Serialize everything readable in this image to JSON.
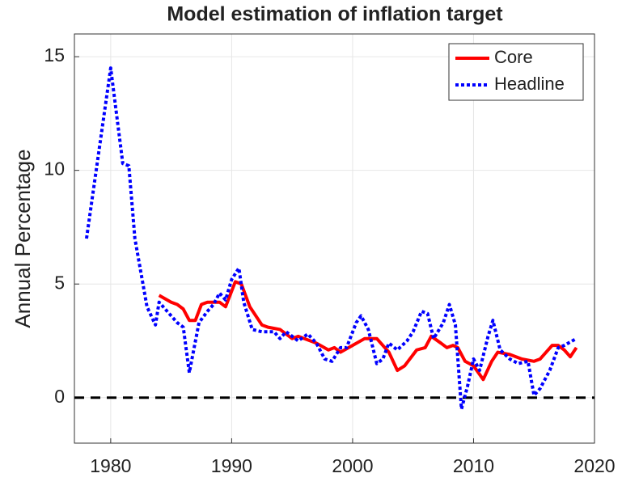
{
  "chart_data": {
    "type": "line",
    "title": "Model estimation of inflation target",
    "y_label": "Annual Percentage",
    "xlim": [
      1977,
      2020
    ],
    "xticks": [
      1980,
      1990,
      2000,
      2010,
      2020
    ],
    "ylim": [
      -2,
      16
    ],
    "yticks": [
      0,
      5,
      10,
      15
    ],
    "grid": true,
    "legend": "northeast",
    "reference_line": 0,
    "series": [
      {
        "name": "Core",
        "color": "#ff0000",
        "style": "solid",
        "x": [
          1984,
          1985,
          1985.5,
          1986,
          1986.5,
          1987,
          1987.5,
          1988,
          1989,
          1989.5,
          1990.3,
          1990.8,
          1991.5,
          1992.5,
          1993,
          1994,
          1995,
          1995.5,
          1997,
          1998,
          1998.5,
          1999,
          2000,
          2001,
          2002,
          2003,
          2003.7,
          2004.3,
          2005.3,
          2006,
          2006.5,
          2007.3,
          2007.8,
          2008.3,
          2008.7,
          2009.3,
          2010,
          2010.8,
          2011.5,
          2012,
          2013,
          2014,
          2015,
          2015.5,
          2016,
          2016.5,
          2017,
          2017.5,
          2018,
          2018.5
        ],
        "values": [
          4.5,
          4.2,
          4.1,
          3.9,
          3.4,
          3.4,
          4.1,
          4.2,
          4.2,
          4.0,
          5.1,
          5.0,
          4.0,
          3.2,
          3.1,
          3.0,
          2.6,
          2.7,
          2.4,
          2.1,
          2.2,
          2.0,
          2.3,
          2.6,
          2.6,
          2.0,
          1.2,
          1.4,
          2.1,
          2.2,
          2.7,
          2.4,
          2.2,
          2.3,
          2.2,
          1.6,
          1.4,
          0.8,
          1.6,
          2.0,
          1.9,
          1.7,
          1.6,
          1.7,
          2.0,
          2.3,
          2.3,
          2.1,
          1.8,
          2.2
        ]
      },
      {
        "name": "Headline",
        "color": "#0000ff",
        "style": "dotted",
        "x": [
          1978,
          1980,
          1981,
          1981.5,
          1982,
          1983,
          1983.7,
          1984,
          1985,
          1985.5,
          1986,
          1986.5,
          1987.3,
          1988,
          1988.5,
          1989,
          1989.5,
          1990,
          1990.6,
          1991,
          1991.7,
          1992.5,
          1993.5,
          1994,
          1994.5,
          1995.5,
          1996.3,
          1997,
          1997.7,
          1998.3,
          1999,
          1999.5,
          2000.3,
          2000.7,
          2001.3,
          2002,
          2002.5,
          2003,
          2003.7,
          2004.5,
          2005,
          2005.7,
          2006.2,
          2006.7,
          2007.5,
          2008,
          2008.5,
          2009,
          2009.5,
          2010,
          2010.5,
          2011.2,
          2011.6,
          2012.2,
          2013,
          2013.7,
          2014.5,
          2015,
          2015.5,
          2016.3,
          2017,
          2017.5,
          2018.5
        ],
        "values": [
          7,
          14.5,
          10.3,
          10.2,
          7,
          4,
          3.2,
          4.2,
          3.6,
          3.3,
          3.1,
          1.1,
          3.3,
          3.8,
          4.1,
          4.6,
          4.3,
          5.2,
          5.7,
          4.2,
          3.0,
          2.9,
          2.9,
          2.6,
          2.9,
          2.5,
          2.8,
          2.4,
          1.7,
          1.6,
          2.2,
          2.2,
          3.3,
          3.6,
          3.0,
          1.5,
          1.7,
          2.4,
          2.1,
          2.5,
          2.9,
          3.8,
          3.7,
          2.6,
          3.3,
          4.1,
          3.2,
          -0.5,
          0.5,
          1.7,
          1.2,
          2.7,
          3.4,
          2.1,
          1.7,
          1.5,
          1.6,
          0.1,
          0.4,
          1.2,
          2.2,
          2.3,
          2.6
        ]
      }
    ]
  }
}
